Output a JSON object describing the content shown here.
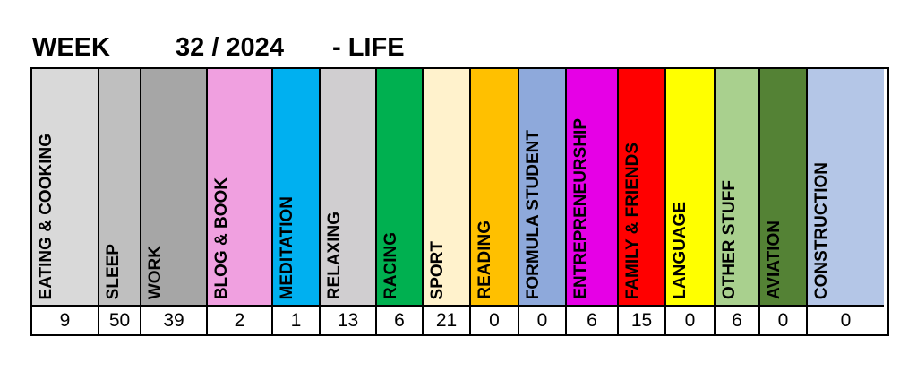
{
  "header": {
    "week_label": "WEEK",
    "week_number": "32 / 2024",
    "section": "- LIFE"
  },
  "categories": [
    {
      "label": "EATING & COOKING",
      "value": "9",
      "color": "#d9d9d9"
    },
    {
      "label": "SLEEP",
      "value": "50",
      "color": "#bfbfbf"
    },
    {
      "label": "WORK",
      "value": "39",
      "color": "#a6a6a6"
    },
    {
      "label": "BLOG & BOOK",
      "value": "2",
      "color": "#f0a0e0"
    },
    {
      "label": "MEDITATION",
      "value": "1",
      "color": "#00b0f0"
    },
    {
      "label": "RELAXING",
      "value": "13",
      "color": "#d0ced0"
    },
    {
      "label": "RACING",
      "value": "6",
      "color": "#00b050"
    },
    {
      "label": "SPORT",
      "value": "21",
      "color": "#fff2cc"
    },
    {
      "label": "READING",
      "value": "0",
      "color": "#ffc000"
    },
    {
      "label": "FORMULA STUDENT",
      "value": "0",
      "color": "#8ea9db"
    },
    {
      "label": "ENTREPRENEURSHIP",
      "value": "6",
      "color": "#e600e6"
    },
    {
      "label": "FAMILY & FRIENDS",
      "value": "15",
      "color": "#ff0000"
    },
    {
      "label": "LANGUAGE",
      "value": "0",
      "color": "#ffff00"
    },
    {
      "label": "OTHER STUFF",
      "value": "6",
      "color": "#a9d08e"
    },
    {
      "label": "AVIATION",
      "value": "0",
      "color": "#548235"
    },
    {
      "label": "CONSTRUCTION",
      "value": "0",
      "color": "#b4c6e7"
    }
  ]
}
